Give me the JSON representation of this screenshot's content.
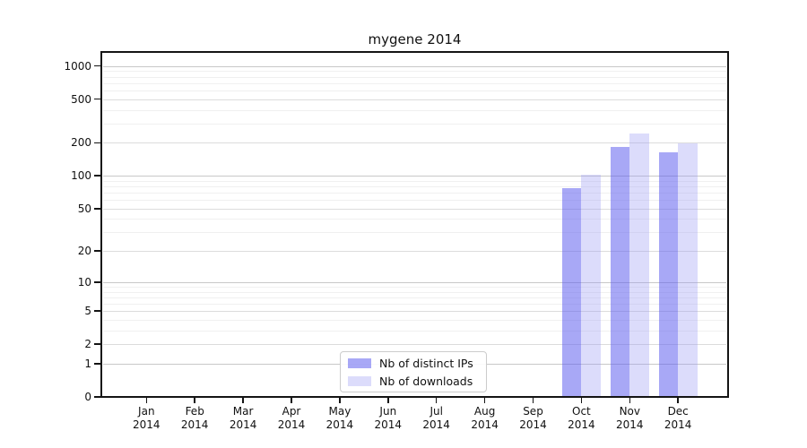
{
  "title": "mygene 2014",
  "chart_data": {
    "type": "bar",
    "title": "mygene 2014",
    "categories": [
      "Jan 2014",
      "Feb 2014",
      "Mar 2014",
      "Apr 2014",
      "May 2014",
      "Jun 2014",
      "Jul 2014",
      "Aug 2014",
      "Sep 2014",
      "Oct 2014",
      "Nov 2014",
      "Dec 2014"
    ],
    "x_tick_line1": [
      "Jan",
      "Feb",
      "Mar",
      "Apr",
      "May",
      "Jun",
      "Jul",
      "Aug",
      "Sep",
      "Oct",
      "Nov",
      "Dec"
    ],
    "x_tick_line2": "2014",
    "series": [
      {
        "name": "Nb of distinct IPs",
        "color": "rgba(97,97,239,0.55)",
        "color_solid": "#a8a8f6",
        "values": [
          0,
          0,
          0,
          0,
          0,
          0,
          0,
          0,
          0,
          77,
          182,
          163
        ]
      },
      {
        "name": "Nb of downloads",
        "color": "rgba(155,155,243,0.35)",
        "color_solid": "#dcdcf9",
        "values": [
          0,
          0,
          0,
          0,
          0,
          0,
          0,
          0,
          0,
          103,
          244,
          197
        ]
      }
    ],
    "yscale": "log1p",
    "y_ticks": [
      0,
      1,
      2,
      5,
      10,
      20,
      50,
      100,
      200,
      500,
      1000
    ],
    "ylim": [
      0,
      1300
    ],
    "grid": "horizontal-log-minor",
    "legend_position": "lower center",
    "spine_color": "#141414",
    "grid_major_color": "#c8c8c8",
    "grid_minor_color": "#f0f0f0"
  }
}
